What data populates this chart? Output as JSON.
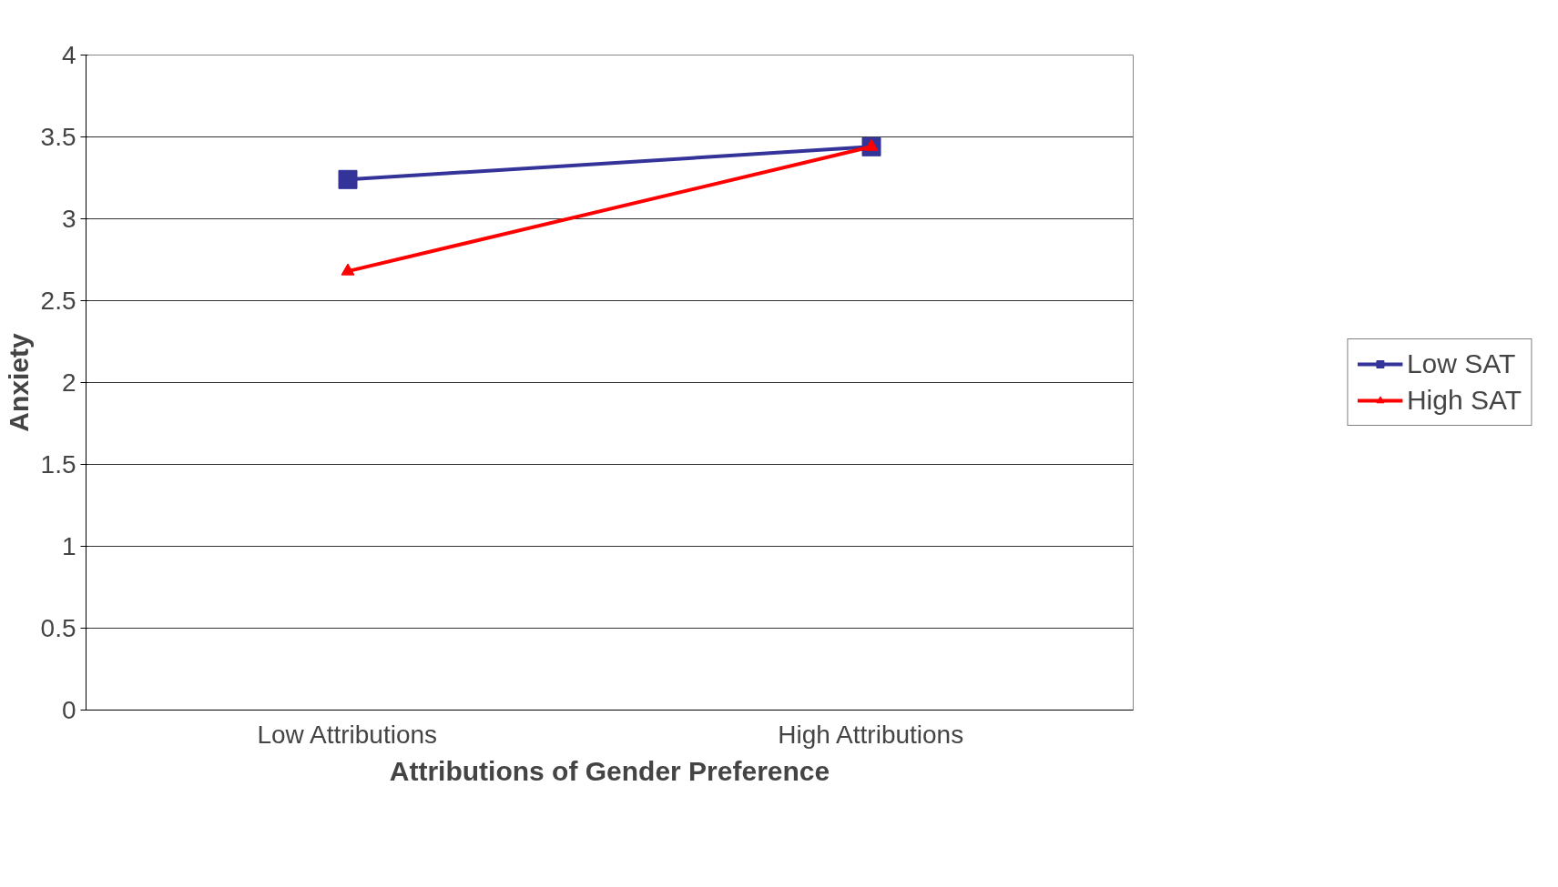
{
  "chart_data": {
    "type": "line",
    "xlabel": "Attributions of Gender Preference",
    "ylabel": "Anxiety",
    "categories": [
      "Low Attributions",
      "High Attributions"
    ],
    "series": [
      {
        "name": "Low SAT",
        "color": "#333399",
        "values": [
          3.24,
          3.44
        ],
        "marker": "square"
      },
      {
        "name": "High SAT",
        "color": "#ff0000",
        "values": [
          2.68,
          3.44
        ],
        "marker": "triangle"
      }
    ],
    "ylim": [
      0,
      4
    ],
    "yticks": [
      0,
      0.5,
      1,
      1.5,
      2,
      2.5,
      3,
      3.5,
      4
    ],
    "grid": "y",
    "legend": "right",
    "line_style": "solid"
  }
}
